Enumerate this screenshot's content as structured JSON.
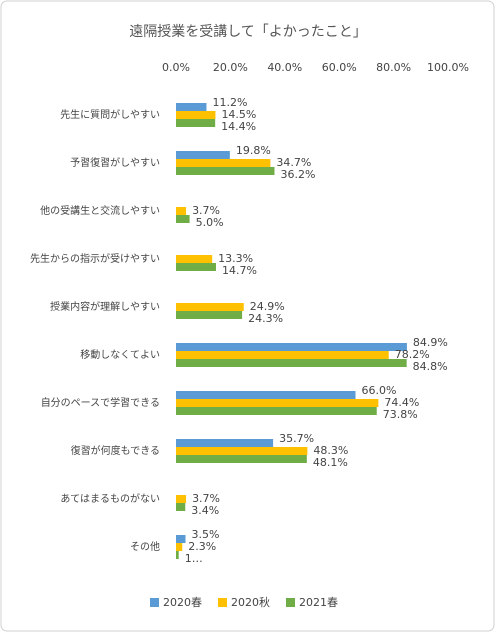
{
  "chart_data": {
    "type": "hbar",
    "title": "遠隔授業を受講して「よかったこと」",
    "categories": [
      "先生に質問がしやすい",
      "予習復習がしやすい",
      "他の受講生と交流しやすい",
      "先生からの指示が受けやすい",
      "授業内容が理解しやすい",
      "移動しなくてよい",
      "自分のペースで学習できる",
      "復習が何度もできる",
      "あてはまるものがない",
      "その他"
    ],
    "series": [
      {
        "name": "2020春",
        "color": "#5b9bd5",
        "values": [
          11.2,
          19.8,
          null,
          null,
          null,
          84.9,
          66.0,
          35.7,
          null,
          3.5
        ],
        "value_labels": [
          "11.2%",
          "19.8%",
          null,
          null,
          null,
          "84.9%",
          "66.0%",
          "35.7%",
          null,
          "3.5%"
        ]
      },
      {
        "name": "2020秋",
        "color": "#ffc000",
        "values": [
          14.5,
          34.7,
          3.7,
          13.3,
          24.9,
          78.2,
          74.4,
          48.3,
          3.7,
          2.3
        ],
        "value_labels": [
          "14.5%",
          "34.7%",
          "3.7%",
          "13.3%",
          "24.9%",
          "78.2%",
          "74.4%",
          "48.3%",
          "3.7%",
          "2.3%"
        ]
      },
      {
        "name": "2021春",
        "color": "#70ad47",
        "values": [
          14.4,
          36.2,
          5.0,
          14.7,
          24.3,
          84.8,
          73.8,
          48.1,
          3.4,
          1
        ],
        "value_labels": [
          "14.4%",
          "36.2%",
          "5.0%",
          "14.7%",
          "24.3%",
          "84.8%",
          "73.8%",
          "48.1%",
          "3.4%",
          "1…"
        ]
      }
    ],
    "xlim": [
      0,
      100
    ],
    "xticks": [
      {
        "value": 0,
        "label": "0.0%"
      },
      {
        "value": 20,
        "label": "20.0%"
      },
      {
        "value": 40,
        "label": "40.0%"
      },
      {
        "value": 60,
        "label": "60.0%"
      },
      {
        "value": 80,
        "label": "80.0%"
      },
      {
        "value": 100,
        "label": "100.0%"
      }
    ]
  }
}
